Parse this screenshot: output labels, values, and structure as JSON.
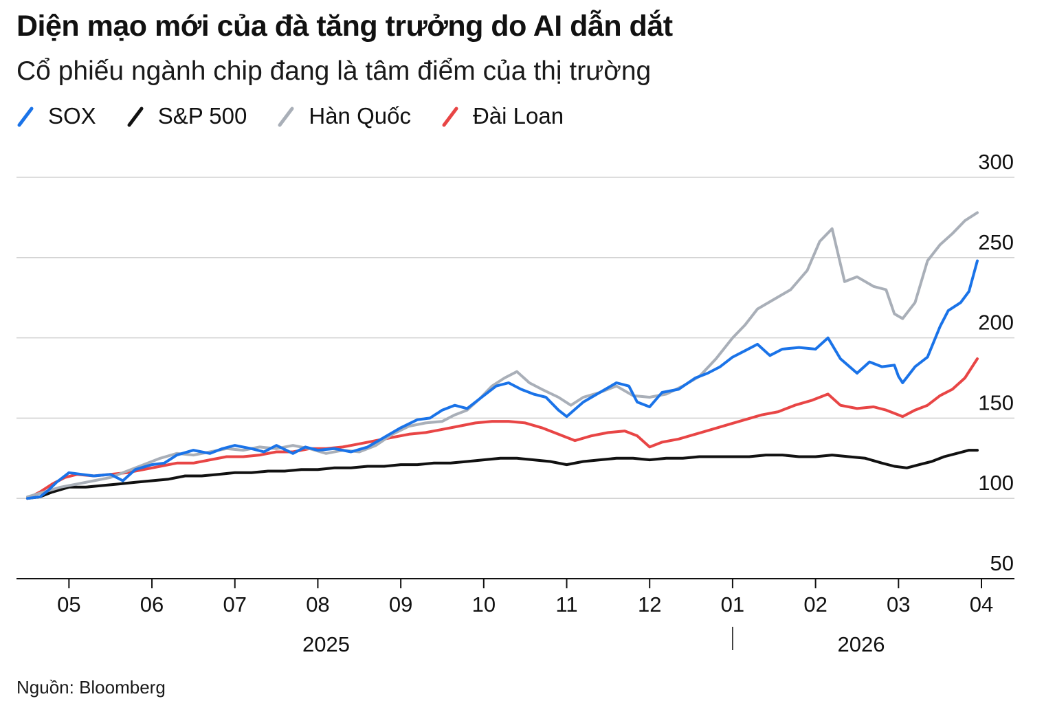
{
  "title": "Diện mạo mới của đà tăng trưởng do AI dẫn dắt",
  "subtitle": "Cổ phiếu ngành chip đang là tâm điểm của thị trường",
  "source": "Nguồn: Bloomberg",
  "chart_data": {
    "type": "line",
    "title": "Diện mạo mới của đà tăng trưởng do AI dẫn dắt",
    "subtitle": "Cổ phiếu ngành chip đang là tâm điểm của thị trường",
    "xlabel": "",
    "ylabel": "",
    "ylim": [
      50,
      300
    ],
    "yticks": [
      300,
      250,
      200,
      150,
      100,
      50
    ],
    "y_axis_side": "right",
    "grid": true,
    "legend_position": "top-left",
    "x_domain": [
      3.5,
      15.0
    ],
    "x_ticks": [
      {
        "label": "05",
        "x": 4.0
      },
      {
        "label": "06",
        "x": 5.0
      },
      {
        "label": "07",
        "x": 6.0
      },
      {
        "label": "08",
        "x": 7.0
      },
      {
        "label": "09",
        "x": 8.0
      },
      {
        "label": "10",
        "x": 9.0
      },
      {
        "label": "11",
        "x": 10.0
      },
      {
        "label": "12",
        "x": 11.0
      },
      {
        "label": "01",
        "x": 12.0
      },
      {
        "label": "02",
        "x": 13.0
      },
      {
        "label": "03",
        "x": 14.0
      },
      {
        "label": "04",
        "x": 15.0
      }
    ],
    "year_labels": [
      {
        "label": "2025",
        "x": 7.1
      },
      {
        "label": "2026",
        "x": 13.55
      }
    ],
    "year_divider_x": 12.0,
    "series": [
      {
        "name": "SOX",
        "color": "#1a73e8",
        "points": [
          [
            3.5,
            100
          ],
          [
            3.65,
            101
          ],
          [
            3.75,
            105
          ],
          [
            3.85,
            110
          ],
          [
            4.0,
            116
          ],
          [
            4.15,
            115
          ],
          [
            4.3,
            114
          ],
          [
            4.5,
            115
          ],
          [
            4.65,
            111
          ],
          [
            4.8,
            118
          ],
          [
            5.0,
            121
          ],
          [
            5.15,
            122
          ],
          [
            5.3,
            127
          ],
          [
            5.5,
            130
          ],
          [
            5.7,
            128
          ],
          [
            5.85,
            131
          ],
          [
            6.0,
            133
          ],
          [
            6.2,
            131
          ],
          [
            6.35,
            129
          ],
          [
            6.5,
            133
          ],
          [
            6.7,
            128
          ],
          [
            6.85,
            132
          ],
          [
            7.0,
            130
          ],
          [
            7.2,
            131
          ],
          [
            7.4,
            129
          ],
          [
            7.6,
            132
          ],
          [
            7.8,
            138
          ],
          [
            8.0,
            144
          ],
          [
            8.2,
            149
          ],
          [
            8.35,
            150
          ],
          [
            8.5,
            155
          ],
          [
            8.65,
            158
          ],
          [
            8.8,
            156
          ],
          [
            9.0,
            164
          ],
          [
            9.15,
            170
          ],
          [
            9.3,
            172
          ],
          [
            9.45,
            168
          ],
          [
            9.6,
            165
          ],
          [
            9.75,
            163
          ],
          [
            9.9,
            155
          ],
          [
            10.0,
            151
          ],
          [
            10.2,
            160
          ],
          [
            10.4,
            166
          ],
          [
            10.6,
            172
          ],
          [
            10.75,
            170
          ],
          [
            10.85,
            160
          ],
          [
            11.0,
            157
          ],
          [
            11.15,
            166
          ],
          [
            11.35,
            168
          ],
          [
            11.55,
            175
          ],
          [
            11.7,
            178
          ],
          [
            11.85,
            182
          ],
          [
            12.0,
            188
          ],
          [
            12.15,
            192
          ],
          [
            12.3,
            196
          ],
          [
            12.45,
            189
          ],
          [
            12.6,
            193
          ],
          [
            12.8,
            194
          ],
          [
            13.0,
            193
          ],
          [
            13.15,
            200
          ],
          [
            13.3,
            187
          ],
          [
            13.5,
            178
          ],
          [
            13.65,
            185
          ],
          [
            13.8,
            182
          ],
          [
            13.95,
            183
          ],
          [
            14.0,
            176
          ],
          [
            14.05,
            172
          ],
          [
            14.2,
            182
          ],
          [
            14.35,
            188
          ],
          [
            14.5,
            207
          ],
          [
            14.6,
            217
          ],
          [
            14.75,
            222
          ],
          [
            14.85,
            229
          ],
          [
            14.95,
            248
          ]
        ]
      },
      {
        "name": "S&P 500",
        "color": "#111111",
        "points": [
          [
            3.5,
            100
          ],
          [
            3.65,
            101
          ],
          [
            3.8,
            104
          ],
          [
            4.0,
            107
          ],
          [
            4.2,
            107
          ],
          [
            4.4,
            108
          ],
          [
            4.6,
            109
          ],
          [
            4.8,
            110
          ],
          [
            5.0,
            111
          ],
          [
            5.2,
            112
          ],
          [
            5.4,
            114
          ],
          [
            5.6,
            114
          ],
          [
            5.8,
            115
          ],
          [
            6.0,
            116
          ],
          [
            6.2,
            116
          ],
          [
            6.4,
            117
          ],
          [
            6.6,
            117
          ],
          [
            6.8,
            118
          ],
          [
            7.0,
            118
          ],
          [
            7.2,
            119
          ],
          [
            7.4,
            119
          ],
          [
            7.6,
            120
          ],
          [
            7.8,
            120
          ],
          [
            8.0,
            121
          ],
          [
            8.2,
            121
          ],
          [
            8.4,
            122
          ],
          [
            8.6,
            122
          ],
          [
            8.8,
            123
          ],
          [
            9.0,
            124
          ],
          [
            9.2,
            125
          ],
          [
            9.4,
            125
          ],
          [
            9.6,
            124
          ],
          [
            9.8,
            123
          ],
          [
            10.0,
            121
          ],
          [
            10.2,
            123
          ],
          [
            10.4,
            124
          ],
          [
            10.6,
            125
          ],
          [
            10.8,
            125
          ],
          [
            11.0,
            124
          ],
          [
            11.2,
            125
          ],
          [
            11.4,
            125
          ],
          [
            11.6,
            126
          ],
          [
            11.8,
            126
          ],
          [
            12.0,
            126
          ],
          [
            12.2,
            126
          ],
          [
            12.4,
            127
          ],
          [
            12.6,
            127
          ],
          [
            12.8,
            126
          ],
          [
            13.0,
            126
          ],
          [
            13.2,
            127
          ],
          [
            13.4,
            126
          ],
          [
            13.6,
            125
          ],
          [
            13.8,
            122
          ],
          [
            13.95,
            120
          ],
          [
            14.1,
            119
          ],
          [
            14.25,
            121
          ],
          [
            14.4,
            123
          ],
          [
            14.55,
            126
          ],
          [
            14.7,
            128
          ],
          [
            14.85,
            130
          ],
          [
            14.95,
            130
          ]
        ]
      },
      {
        "name": "Hàn Quốc",
        "color": "#a9afb8",
        "points": [
          [
            3.5,
            101
          ],
          [
            3.7,
            104
          ],
          [
            3.9,
            107
          ],
          [
            4.1,
            109
          ],
          [
            4.3,
            111
          ],
          [
            4.5,
            113
          ],
          [
            4.7,
            117
          ],
          [
            4.9,
            121
          ],
          [
            5.1,
            125
          ],
          [
            5.3,
            128
          ],
          [
            5.5,
            127
          ],
          [
            5.7,
            129
          ],
          [
            5.9,
            131
          ],
          [
            6.1,
            130
          ],
          [
            6.3,
            132
          ],
          [
            6.5,
            131
          ],
          [
            6.7,
            133
          ],
          [
            6.9,
            131
          ],
          [
            7.1,
            128
          ],
          [
            7.3,
            130
          ],
          [
            7.5,
            129
          ],
          [
            7.7,
            133
          ],
          [
            7.9,
            140
          ],
          [
            8.1,
            145
          ],
          [
            8.3,
            147
          ],
          [
            8.5,
            148
          ],
          [
            8.65,
            152
          ],
          [
            8.8,
            155
          ],
          [
            8.95,
            162
          ],
          [
            9.1,
            170
          ],
          [
            9.25,
            175
          ],
          [
            9.4,
            179
          ],
          [
            9.55,
            172
          ],
          [
            9.7,
            168
          ],
          [
            9.9,
            163
          ],
          [
            10.05,
            158
          ],
          [
            10.2,
            163
          ],
          [
            10.4,
            166
          ],
          [
            10.6,
            170
          ],
          [
            10.8,
            164
          ],
          [
            11.0,
            163
          ],
          [
            11.2,
            165
          ],
          [
            11.4,
            170
          ],
          [
            11.6,
            176
          ],
          [
            11.8,
            187
          ],
          [
            12.0,
            200
          ],
          [
            12.15,
            208
          ],
          [
            12.3,
            218
          ],
          [
            12.5,
            224
          ],
          [
            12.7,
            230
          ],
          [
            12.9,
            242
          ],
          [
            13.05,
            260
          ],
          [
            13.2,
            268
          ],
          [
            13.35,
            235
          ],
          [
            13.5,
            238
          ],
          [
            13.7,
            232
          ],
          [
            13.85,
            230
          ],
          [
            13.95,
            215
          ],
          [
            14.05,
            212
          ],
          [
            14.2,
            222
          ],
          [
            14.35,
            248
          ],
          [
            14.5,
            258
          ],
          [
            14.65,
            265
          ],
          [
            14.8,
            273
          ],
          [
            14.95,
            278
          ]
        ]
      },
      {
        "name": "Đài Loan",
        "color": "#e84545",
        "points": [
          [
            3.5,
            100
          ],
          [
            3.65,
            104
          ],
          [
            3.8,
            109
          ],
          [
            3.95,
            113
          ],
          [
            4.1,
            115
          ],
          [
            4.3,
            114
          ],
          [
            4.5,
            115
          ],
          [
            4.7,
            116
          ],
          [
            4.9,
            118
          ],
          [
            5.1,
            120
          ],
          [
            5.3,
            122
          ],
          [
            5.5,
            122
          ],
          [
            5.7,
            124
          ],
          [
            5.9,
            126
          ],
          [
            6.1,
            126
          ],
          [
            6.3,
            127
          ],
          [
            6.5,
            129
          ],
          [
            6.7,
            129
          ],
          [
            6.9,
            131
          ],
          [
            7.1,
            131
          ],
          [
            7.3,
            132
          ],
          [
            7.5,
            134
          ],
          [
            7.7,
            136
          ],
          [
            7.9,
            138
          ],
          [
            8.1,
            140
          ],
          [
            8.3,
            141
          ],
          [
            8.5,
            143
          ],
          [
            8.7,
            145
          ],
          [
            8.9,
            147
          ],
          [
            9.1,
            148
          ],
          [
            9.3,
            148
          ],
          [
            9.5,
            147
          ],
          [
            9.7,
            144
          ],
          [
            9.9,
            140
          ],
          [
            10.1,
            136
          ],
          [
            10.3,
            139
          ],
          [
            10.5,
            141
          ],
          [
            10.7,
            142
          ],
          [
            10.85,
            139
          ],
          [
            11.0,
            132
          ],
          [
            11.15,
            135
          ],
          [
            11.35,
            137
          ],
          [
            11.55,
            140
          ],
          [
            11.75,
            143
          ],
          [
            11.95,
            146
          ],
          [
            12.15,
            149
          ],
          [
            12.35,
            152
          ],
          [
            12.55,
            154
          ],
          [
            12.75,
            158
          ],
          [
            12.95,
            161
          ],
          [
            13.15,
            165
          ],
          [
            13.3,
            158
          ],
          [
            13.5,
            156
          ],
          [
            13.7,
            157
          ],
          [
            13.85,
            155
          ],
          [
            13.95,
            153
          ],
          [
            14.05,
            151
          ],
          [
            14.2,
            155
          ],
          [
            14.35,
            158
          ],
          [
            14.5,
            164
          ],
          [
            14.65,
            168
          ],
          [
            14.8,
            175
          ],
          [
            14.95,
            187
          ]
        ]
      }
    ]
  }
}
